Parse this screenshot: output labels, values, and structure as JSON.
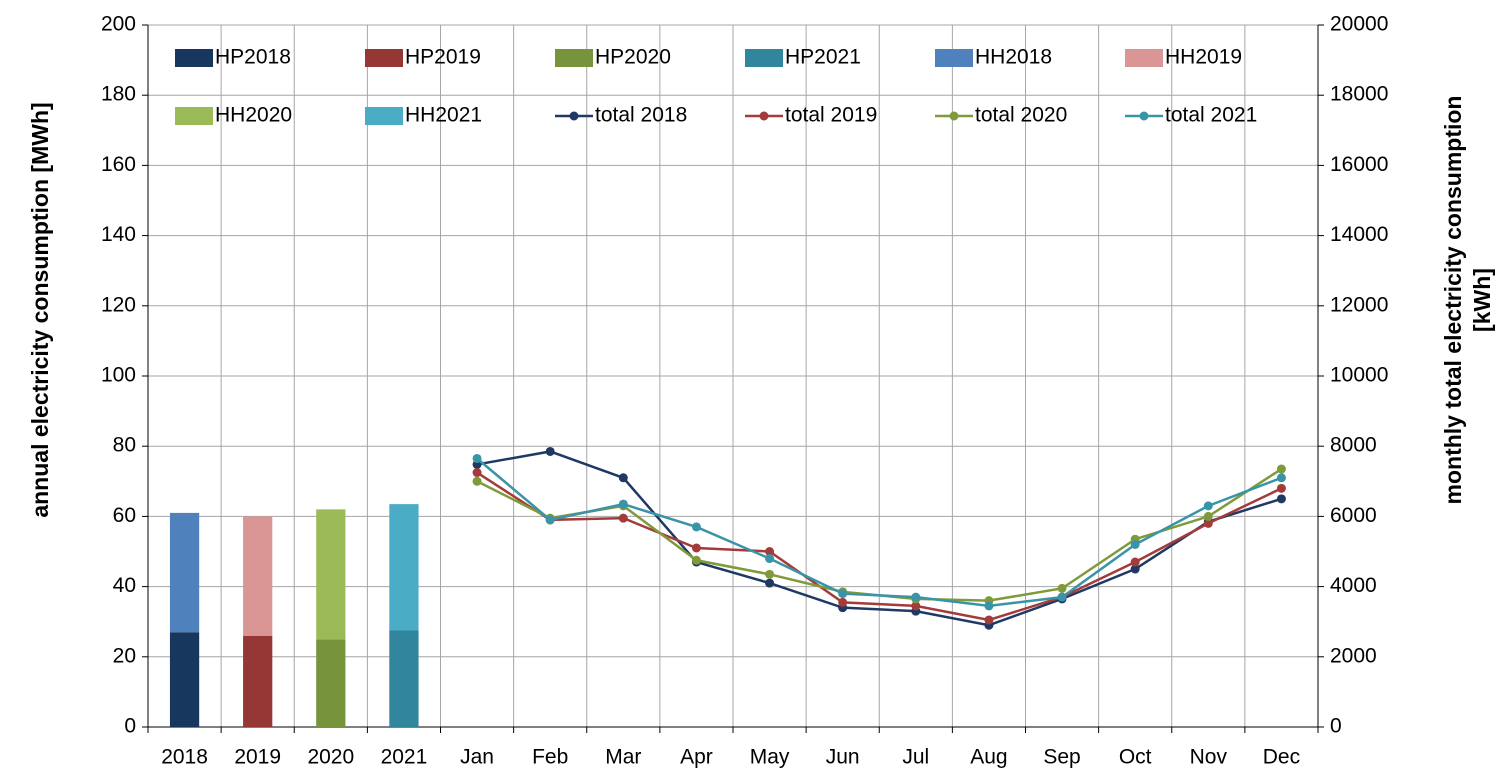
{
  "chart_data": {
    "type": "bar",
    "categories": [
      "2018",
      "2019",
      "2020",
      "2021",
      "Jan",
      "Feb",
      "Mar",
      "Apr",
      "May",
      "Jun",
      "Jul",
      "Aug",
      "Sep",
      "Oct",
      "Nov",
      "Dec"
    ],
    "y_label": "annual electricity consumption [MWh]",
    "y2_label": [
      "monthly total electricity consumption",
      "[kWh]"
    ],
    "ylim": [
      0,
      200
    ],
    "yticks": [
      0,
      20,
      40,
      60,
      80,
      100,
      120,
      140,
      160,
      180,
      200
    ],
    "y2lim": [
      0,
      20000
    ],
    "y2ticks": [
      0,
      2000,
      4000,
      6000,
      8000,
      10000,
      12000,
      14000,
      16000,
      18000,
      20000
    ],
    "grid": true,
    "legend": "top",
    "series": [
      {
        "name": "HP2018",
        "type": "bar",
        "stack": "base",
        "color": "#17375e",
        "values": [
          27,
          null,
          null,
          null,
          null,
          null,
          null,
          null,
          null,
          null,
          null,
          null,
          null,
          null,
          null,
          null
        ]
      },
      {
        "name": "HP2019",
        "type": "bar",
        "stack": "base",
        "color": "#953735",
        "values": [
          null,
          26,
          null,
          null,
          null,
          null,
          null,
          null,
          null,
          null,
          null,
          null,
          null,
          null,
          null,
          null
        ]
      },
      {
        "name": "HP2020",
        "type": "bar",
        "stack": "base",
        "color": "#77933c",
        "values": [
          null,
          null,
          25,
          null,
          null,
          null,
          null,
          null,
          null,
          null,
          null,
          null,
          null,
          null,
          null,
          null
        ]
      },
      {
        "name": "HP2021",
        "type": "bar",
        "stack": "base",
        "color": "#31859c",
        "values": [
          null,
          null,
          null,
          27.5,
          null,
          null,
          null,
          null,
          null,
          null,
          null,
          null,
          null,
          null,
          null,
          null
        ]
      },
      {
        "name": "HH2018",
        "type": "bar",
        "stack": "top",
        "color": "#4f81bd",
        "values": [
          34,
          null,
          null,
          null,
          null,
          null,
          null,
          null,
          null,
          null,
          null,
          null,
          null,
          null,
          null,
          null
        ]
      },
      {
        "name": "HH2019",
        "type": "bar",
        "stack": "top",
        "color": "#d99694",
        "values": [
          null,
          34,
          null,
          null,
          null,
          null,
          null,
          null,
          null,
          null,
          null,
          null,
          null,
          null,
          null,
          null
        ]
      },
      {
        "name": "HH2020",
        "type": "bar",
        "stack": "top",
        "color": "#9bbb59",
        "values": [
          null,
          null,
          37,
          null,
          null,
          null,
          null,
          null,
          null,
          null,
          null,
          null,
          null,
          null,
          null,
          null
        ]
      },
      {
        "name": "HH2021",
        "type": "bar",
        "stack": "top",
        "color": "#4bacc6",
        "values": [
          null,
          null,
          null,
          36,
          null,
          null,
          null,
          null,
          null,
          null,
          null,
          null,
          null,
          null,
          null,
          null
        ]
      },
      {
        "name": "total 2018",
        "type": "line",
        "axis": "y2",
        "color": "#1f3864",
        "values": [
          null,
          null,
          null,
          null,
          7480,
          7850,
          7100,
          4700,
          4100,
          3400,
          3300,
          2900,
          3650,
          4500,
          5850,
          6500
        ]
      },
      {
        "name": "total 2019",
        "type": "line",
        "axis": "y2",
        "color": "#a33b3b",
        "values": [
          null,
          null,
          null,
          null,
          7250,
          5900,
          5950,
          5100,
          5000,
          3550,
          3450,
          3050,
          3700,
          4700,
          5800,
          6800
        ]
      },
      {
        "name": "total 2020",
        "type": "line",
        "axis": "y2",
        "color": "#7f9a3a",
        "values": [
          null,
          null,
          null,
          null,
          7000,
          5950,
          6300,
          4750,
          4350,
          3850,
          3650,
          3600,
          3950,
          5350,
          6000,
          7350
        ]
      },
      {
        "name": "total 2021",
        "type": "line",
        "axis": "y2",
        "color": "#3a94a8",
        "values": [
          null,
          null,
          null,
          null,
          7650,
          5900,
          6350,
          5700,
          4800,
          3800,
          3700,
          3450,
          3700,
          5200,
          6300,
          7100
        ]
      }
    ]
  }
}
